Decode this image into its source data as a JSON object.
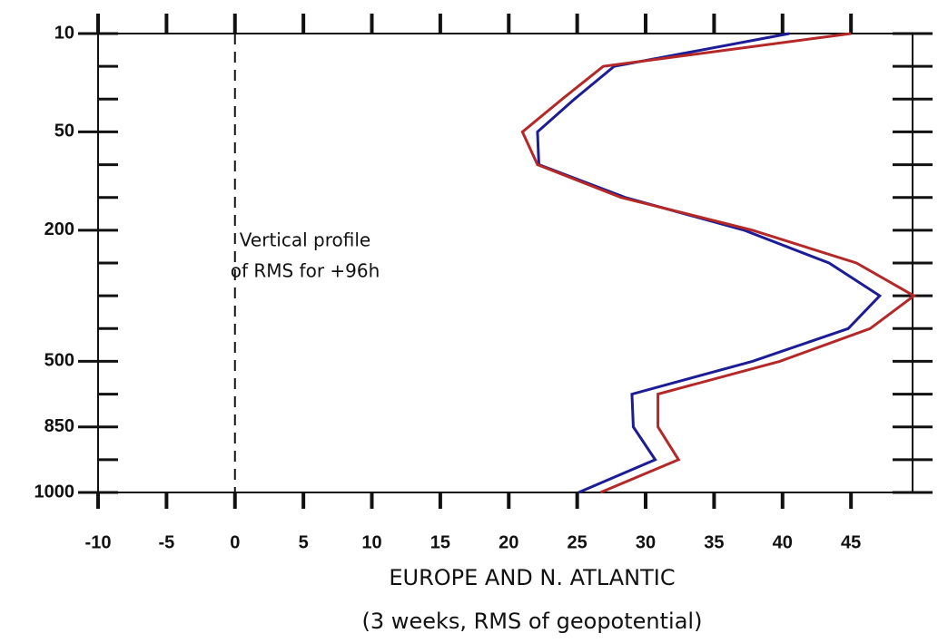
{
  "chart_data": {
    "type": "line",
    "orientation": "horizontal",
    "categories": [
      "10",
      null,
      null,
      "50",
      null,
      null,
      "200",
      null,
      null,
      null,
      "500",
      null,
      "850",
      null,
      "1000"
    ],
    "series": [
      {
        "color": "#1c1c96",
        "values": [
          40.5,
          27.7,
          24.8,
          22.1,
          22.2,
          28.5,
          37.2,
          43.4,
          47.1,
          44.8,
          37.8,
          29.0,
          29.1,
          30.7,
          25.1
        ]
      },
      {
        "color": "#b42828",
        "values": [
          45.0,
          26.9,
          23.9,
          21.0,
          22.1,
          28.2,
          37.8,
          45.4,
          49.6,
          46.4,
          39.8,
          30.9,
          30.9,
          32.4,
          26.7
        ]
      }
    ],
    "xlim": [
      -10,
      49.5
    ],
    "xticks": [
      -10,
      -5,
      0,
      5,
      10,
      15,
      20,
      25,
      30,
      35,
      40,
      45
    ],
    "reference_line": 0,
    "annotation": [
      "Vertical profile",
      "of RMS for +96h"
    ],
    "xlabel": [
      "EUROPE AND N. ATLANTIC",
      "(3 weeks, RMS of geopotential)"
    ]
  }
}
